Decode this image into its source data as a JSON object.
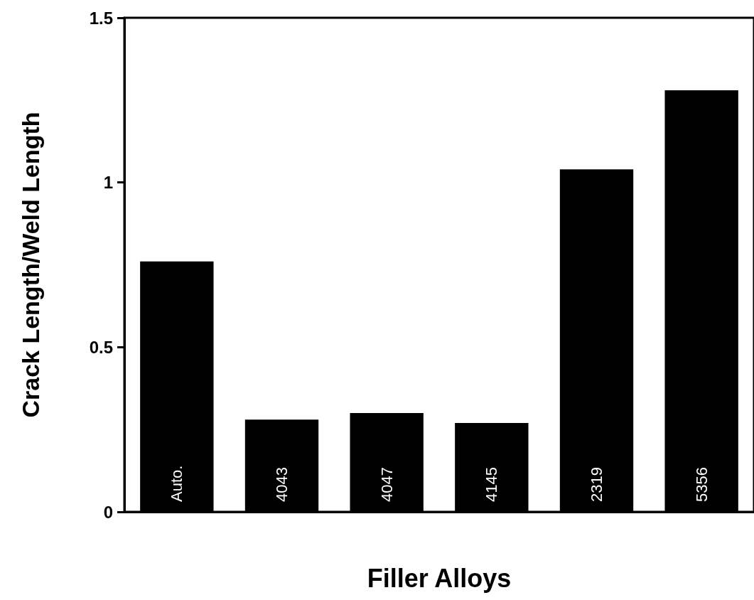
{
  "chart_data": {
    "type": "bar",
    "xlabel": "Filler Alloys",
    "ylabel": "Crack Length/Weld Length",
    "categories": [
      "Auto.",
      "4043",
      "4047",
      "4145",
      "2319",
      "5356"
    ],
    "values": [
      0.76,
      0.28,
      0.3,
      0.27,
      1.04,
      1.28
    ],
    "color": "#000000",
    "ylim": [
      0,
      1.5
    ],
    "yticks": [
      0,
      0.5,
      1,
      1.5
    ],
    "grid": false
  }
}
